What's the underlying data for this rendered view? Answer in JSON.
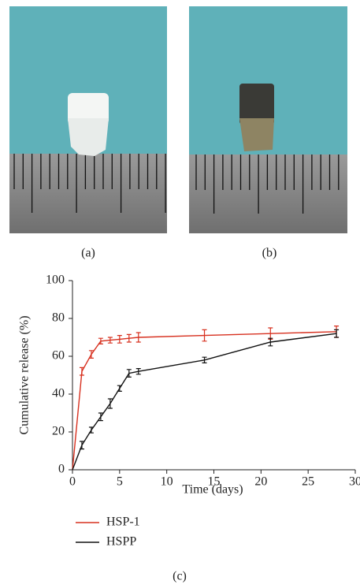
{
  "panel_labels": [
    "(a)",
    "(b)",
    "(c)"
  ],
  "chart_data": {
    "type": "line",
    "x_label": "Time (days)",
    "y_label": "Cumulative release (%)",
    "x": [
      0,
      1,
      2,
      3,
      4,
      5,
      6,
      7,
      14,
      21,
      28
    ],
    "series": [
      {
        "name": "HSP-1",
        "color": "#d7301f",
        "values": [
          0,
          52,
          61,
          68,
          68.5,
          69,
          69.5,
          70,
          71,
          72,
          73
        ],
        "errors": [
          null,
          2,
          2,
          1.5,
          1.5,
          2,
          2,
          2.5,
          3,
          3,
          3
        ]
      },
      {
        "name": "HSPP",
        "color": "#111111",
        "values": [
          0,
          13,
          21,
          28,
          35,
          43,
          51,
          52,
          58,
          67.5,
          72
        ],
        "errors": [
          null,
          2,
          1.5,
          2,
          2.5,
          1.5,
          2,
          1.5,
          1.5,
          2,
          2
        ]
      }
    ],
    "xlim": [
      0,
      30
    ],
    "xticks": [
      0,
      5,
      10,
      15,
      20,
      25,
      30
    ],
    "ylim": [
      0,
      100
    ],
    "yticks": [
      0,
      20,
      40,
      60,
      80,
      100
    ],
    "grid": false
  }
}
